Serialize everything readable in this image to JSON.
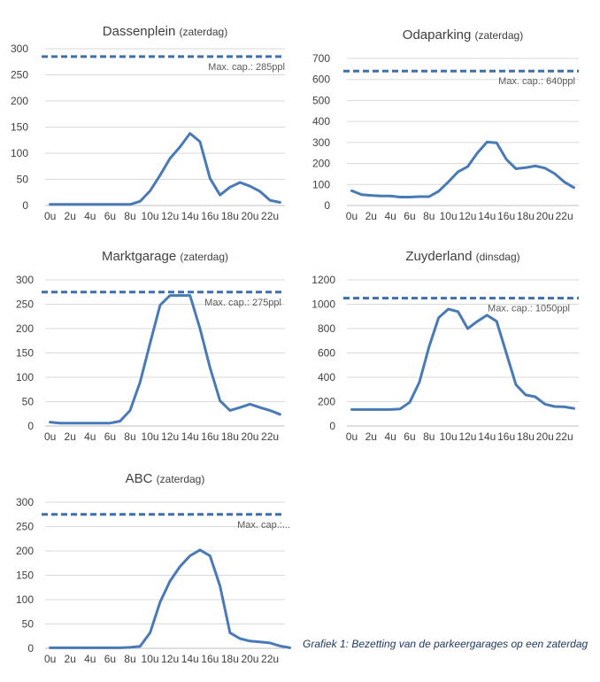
{
  "colors": {
    "series": "#4a7ab5",
    "capacity": "#3d6fad"
  },
  "caption": "Grafiek 1: Bezetting van de parkeergarages op een zaterdag",
  "chart_data": [
    {
      "type": "line",
      "title": "Dassenplein",
      "subtitle": "(zaterdag)",
      "ylim": [
        0,
        300
      ],
      "yticks": [
        0,
        50,
        100,
        150,
        200,
        250,
        300
      ],
      "x_labels": [
        "0u",
        "2u",
        "4u",
        "6u",
        "8u",
        "10u",
        "12u",
        "14u",
        "16u",
        "18u",
        "20u",
        "22u"
      ],
      "capacity": 285,
      "capacity_label": "Max. cap.: 285ppl",
      "values": [
        2,
        2,
        2,
        2,
        2,
        2,
        2,
        2,
        2,
        8,
        28,
        58,
        90,
        112,
        138,
        122,
        52,
        20,
        35,
        44,
        37,
        27,
        10,
        6
      ]
    },
    {
      "type": "line",
      "title": "Odaparking",
      "subtitle": "(zaterdag)",
      "ylim": [
        0,
        700
      ],
      "yticks": [
        0,
        100,
        200,
        300,
        400,
        500,
        600,
        700
      ],
      "x_labels": [
        "0u",
        "2u",
        "4u",
        "6u",
        "8u",
        "10u",
        "12u",
        "14u",
        "16u",
        "18u",
        "20u",
        "22u"
      ],
      "capacity": 640,
      "capacity_label": "Max. cap.: 640ppl",
      "values": [
        70,
        52,
        48,
        45,
        45,
        40,
        40,
        42,
        42,
        68,
        112,
        160,
        185,
        250,
        302,
        298,
        220,
        175,
        180,
        188,
        178,
        152,
        112,
        85
      ]
    },
    {
      "type": "line",
      "title": "Marktgarage",
      "subtitle": "(zaterdag)",
      "ylim": [
        0,
        300
      ],
      "yticks": [
        0,
        50,
        100,
        150,
        200,
        250,
        300
      ],
      "x_labels": [
        "0u",
        "2u",
        "4u",
        "6u",
        "8u",
        "10u",
        "12u",
        "14u",
        "16u",
        "18u",
        "20u",
        "22u"
      ],
      "capacity": 275,
      "capacity_label": "Max. cap.: 275ppl",
      "values": [
        8,
        6,
        6,
        6,
        6,
        6,
        6,
        10,
        32,
        90,
        170,
        248,
        268,
        268,
        268,
        200,
        120,
        52,
        32,
        38,
        45,
        38,
        32,
        24
      ]
    },
    {
      "type": "line",
      "title": "Zuyderland",
      "subtitle": "(dinsdag)",
      "ylim": [
        0,
        1200
      ],
      "yticks": [
        0,
        200,
        400,
        600,
        800,
        1000,
        1200
      ],
      "x_labels": [
        "0u",
        "2u",
        "4u",
        "6u",
        "8u",
        "10u",
        "12u",
        "14u",
        "16u",
        "18u",
        "20u",
        "22u"
      ],
      "capacity": 1050,
      "capacity_label": "Max. cap.: 1050ppl",
      "values": [
        135,
        135,
        135,
        135,
        135,
        140,
        195,
        360,
        650,
        890,
        960,
        940,
        800,
        860,
        910,
        860,
        600,
        340,
        255,
        240,
        180,
        160,
        158,
        145
      ]
    },
    {
      "type": "line",
      "title": "ABC",
      "subtitle": "(zaterdag)",
      "ylim": [
        0,
        300
      ],
      "yticks": [
        0,
        50,
        100,
        150,
        200,
        250,
        300
      ],
      "x_labels": [
        "0u",
        "2u",
        "4u",
        "6u",
        "8u",
        "10u",
        "12u",
        "14u",
        "16u",
        "18u",
        "20u",
        "22u"
      ],
      "capacity": 275,
      "capacity_label": "Max. cap.:...",
      "values": [
        1,
        1,
        1,
        1,
        1,
        1,
        1,
        1,
        2,
        4,
        32,
        95,
        138,
        168,
        190,
        202,
        190,
        128,
        32,
        20,
        15,
        13,
        11,
        5,
        1
      ]
    }
  ]
}
